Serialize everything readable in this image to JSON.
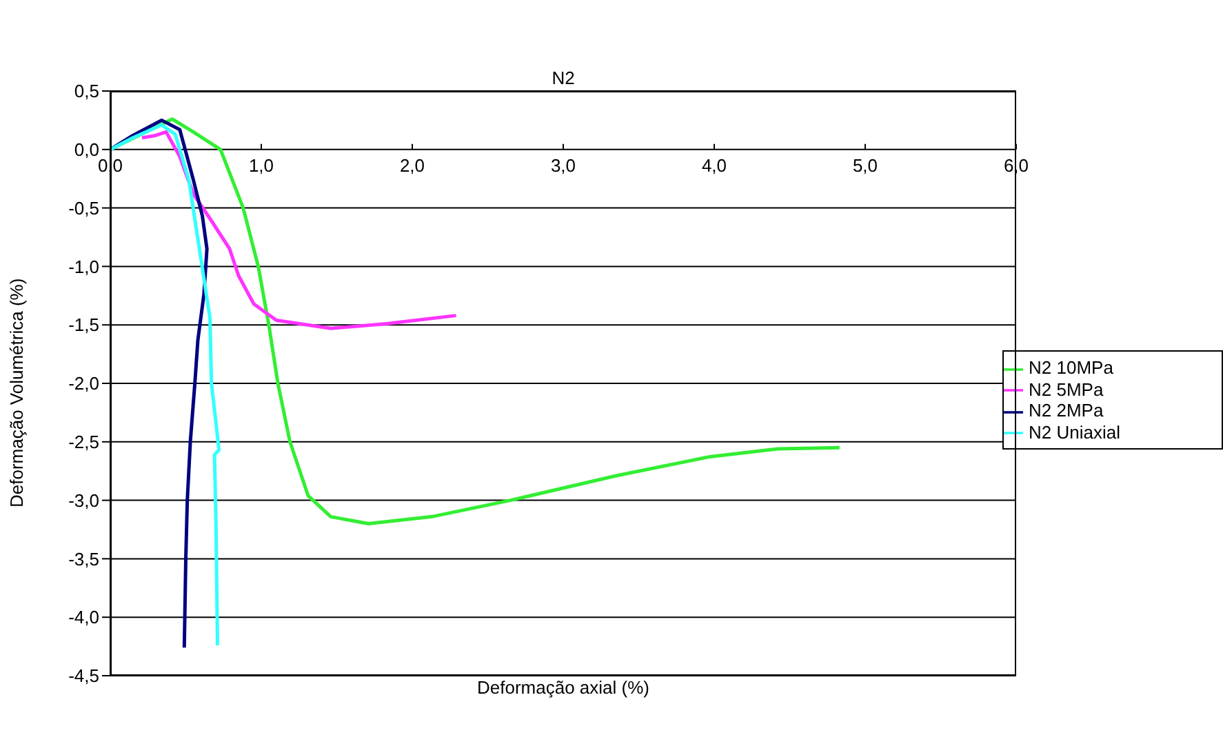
{
  "chart_data": {
    "type": "line",
    "title": "N2",
    "xlabel": "Deformação axial (%)",
    "ylabel": "Deformação Volumétrica (%)",
    "xlim": [
      0,
      6
    ],
    "xticks": [
      {
        "value": 0,
        "label": "0,0"
      },
      {
        "value": 1,
        "label": "1,0"
      },
      {
        "value": 2,
        "label": "2,0"
      },
      {
        "value": 3,
        "label": "3,0"
      },
      {
        "value": 4,
        "label": "4,0"
      },
      {
        "value": 5,
        "label": "5,0"
      },
      {
        "value": 6,
        "label": "6,0"
      }
    ],
    "ylim": [
      -4.5,
      0.5
    ],
    "yticks": [
      {
        "value": -4.5,
        "label": "-4,5"
      },
      {
        "value": -4,
        "label": "-4,0"
      },
      {
        "value": -3.5,
        "label": "-3,5"
      },
      {
        "value": -3,
        "label": "-3,0"
      },
      {
        "value": -2.5,
        "label": "-2,5"
      },
      {
        "value": -2,
        "label": "-2,0"
      },
      {
        "value": -1.5,
        "label": "-1,5"
      },
      {
        "value": -1,
        "label": "-1,0"
      },
      {
        "value": -0.5,
        "label": "-0,5"
      },
      {
        "value": 0,
        "label": "0,0"
      },
      {
        "value": 0.5,
        "label": "0,5"
      }
    ],
    "grid": "y",
    "legend": "right",
    "marker": "none",
    "line_style": "solid",
    "series": [
      {
        "name": "N2 10MPa",
        "color": "#33ee33",
        "x": [
          0,
          0.41,
          0.55,
          0.73,
          0.88,
          0.98,
          1.05,
          1.11,
          1.19,
          1.31,
          1.46,
          1.71,
          2.13,
          2.65,
          3.35,
          3.96,
          4.42,
          4.83
        ],
        "values": [
          0,
          0.26,
          0.15,
          0,
          -0.5,
          -1.0,
          -1.5,
          -2.0,
          -2.5,
          -2.96,
          -3.14,
          -3.2,
          -3.14,
          -3.0,
          -2.79,
          -2.63,
          -2.56,
          -2.55
        ]
      },
      {
        "name": "N2 5MPa",
        "color": "#ff33ff",
        "x": [
          0.21,
          0.3,
          0.37,
          0.46,
          0.55,
          0.67,
          0.79,
          0.85,
          0.95,
          1.1,
          1.46,
          1.83,
          2.29
        ],
        "values": [
          0.1,
          0.12,
          0.15,
          -0.06,
          -0.38,
          -0.61,
          -0.85,
          -1.08,
          -1.32,
          -1.46,
          -1.53,
          -1.49,
          -1.42
        ]
      },
      {
        "name": "N2 2MPa",
        "color": "#000080",
        "x": [
          0,
          0.15,
          0.34,
          0.46,
          0.55,
          0.61,
          0.64,
          0.62,
          0.58,
          0.56,
          0.53,
          0.51,
          0.5,
          0.49
        ],
        "values": [
          0,
          0.12,
          0.25,
          0.17,
          -0.26,
          -0.57,
          -0.85,
          -1.24,
          -1.63,
          -2.0,
          -2.5,
          -3.0,
          -3.5,
          -4.26
        ]
      },
      {
        "name": "N2 Uniaxial",
        "color": "#33ffff",
        "x": [
          0,
          0.15,
          0.34,
          0.43,
          0.52,
          0.59,
          0.66,
          0.67,
          0.72,
          0.69,
          0.7,
          0.71
        ],
        "values": [
          0,
          0.1,
          0.21,
          0.13,
          -0.26,
          -0.85,
          -1.44,
          -2.0,
          -2.57,
          -2.61,
          -3.2,
          -4.24
        ]
      }
    ]
  }
}
